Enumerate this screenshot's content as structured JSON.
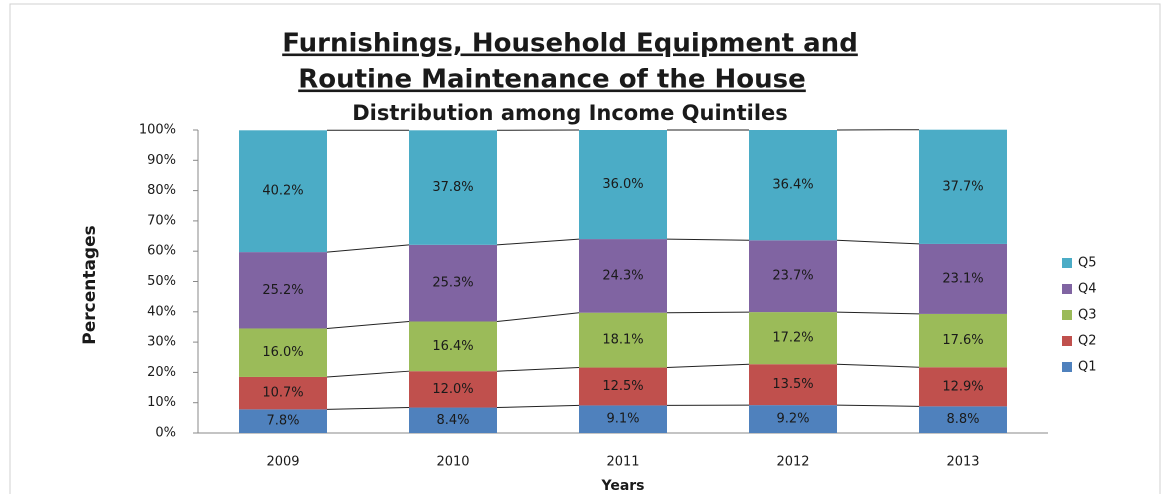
{
  "chart_data": {
    "type": "stacked_bar",
    "title": [
      "Furnishings, Household Equipment and",
      "Routine Maintenance of the House"
    ],
    "subtitle": "Distribution among Income Quintiles",
    "y_label": "Percentages",
    "x_label": "Years",
    "categories": [
      "2009",
      "2010",
      "2011",
      "2012",
      "2013"
    ],
    "series": [
      {
        "name": "Q1",
        "color": "#4f81bd",
        "values": [
          7.8,
          8.4,
          9.1,
          9.2,
          8.8
        ],
        "value_labels": [
          "7.8%",
          "8.4%",
          "9.1%",
          "9.2%",
          "8.8%"
        ]
      },
      {
        "name": "Q2",
        "color": "#c0504d",
        "values": [
          10.7,
          12.0,
          12.5,
          13.5,
          12.9
        ],
        "value_labels": [
          "10.7%",
          "12.0%",
          "12.5%",
          "13.5%",
          "12.9%"
        ]
      },
      {
        "name": "Q3",
        "color": "#9bbb59",
        "values": [
          16.0,
          16.4,
          18.1,
          17.2,
          17.6
        ],
        "value_labels": [
          "16.0%",
          "16.4%",
          "18.1%",
          "17.2%",
          "17.6%"
        ]
      },
      {
        "name": "Q4",
        "color": "#8064a2",
        "values": [
          25.2,
          25.3,
          24.3,
          23.7,
          23.1
        ],
        "value_labels": [
          "25.2%",
          "25.3%",
          "24.3%",
          "23.7%",
          "23.1%"
        ]
      },
      {
        "name": "Q5",
        "color": "#4bacc6",
        "values": [
          40.2,
          37.8,
          36.0,
          36.4,
          37.7
        ],
        "value_labels": [
          "40.2%",
          "37.8%",
          "36.0%",
          "36.4%",
          "37.7%"
        ]
      }
    ],
    "ylim": [
      0,
      100
    ],
    "yticks": [
      {
        "value": 0,
        "label": "0%"
      },
      {
        "value": 10,
        "label": "10%"
      },
      {
        "value": 20,
        "label": "20%"
      },
      {
        "value": 30,
        "label": "30%"
      },
      {
        "value": 40,
        "label": "40%"
      },
      {
        "value": 50,
        "label": "50%"
      },
      {
        "value": 60,
        "label": "60%"
      },
      {
        "value": 70,
        "label": "70%"
      },
      {
        "value": 80,
        "label": "80%"
      },
      {
        "value": 90,
        "label": "90%"
      },
      {
        "value": 100,
        "label": "100%"
      }
    ],
    "legend": "right"
  }
}
